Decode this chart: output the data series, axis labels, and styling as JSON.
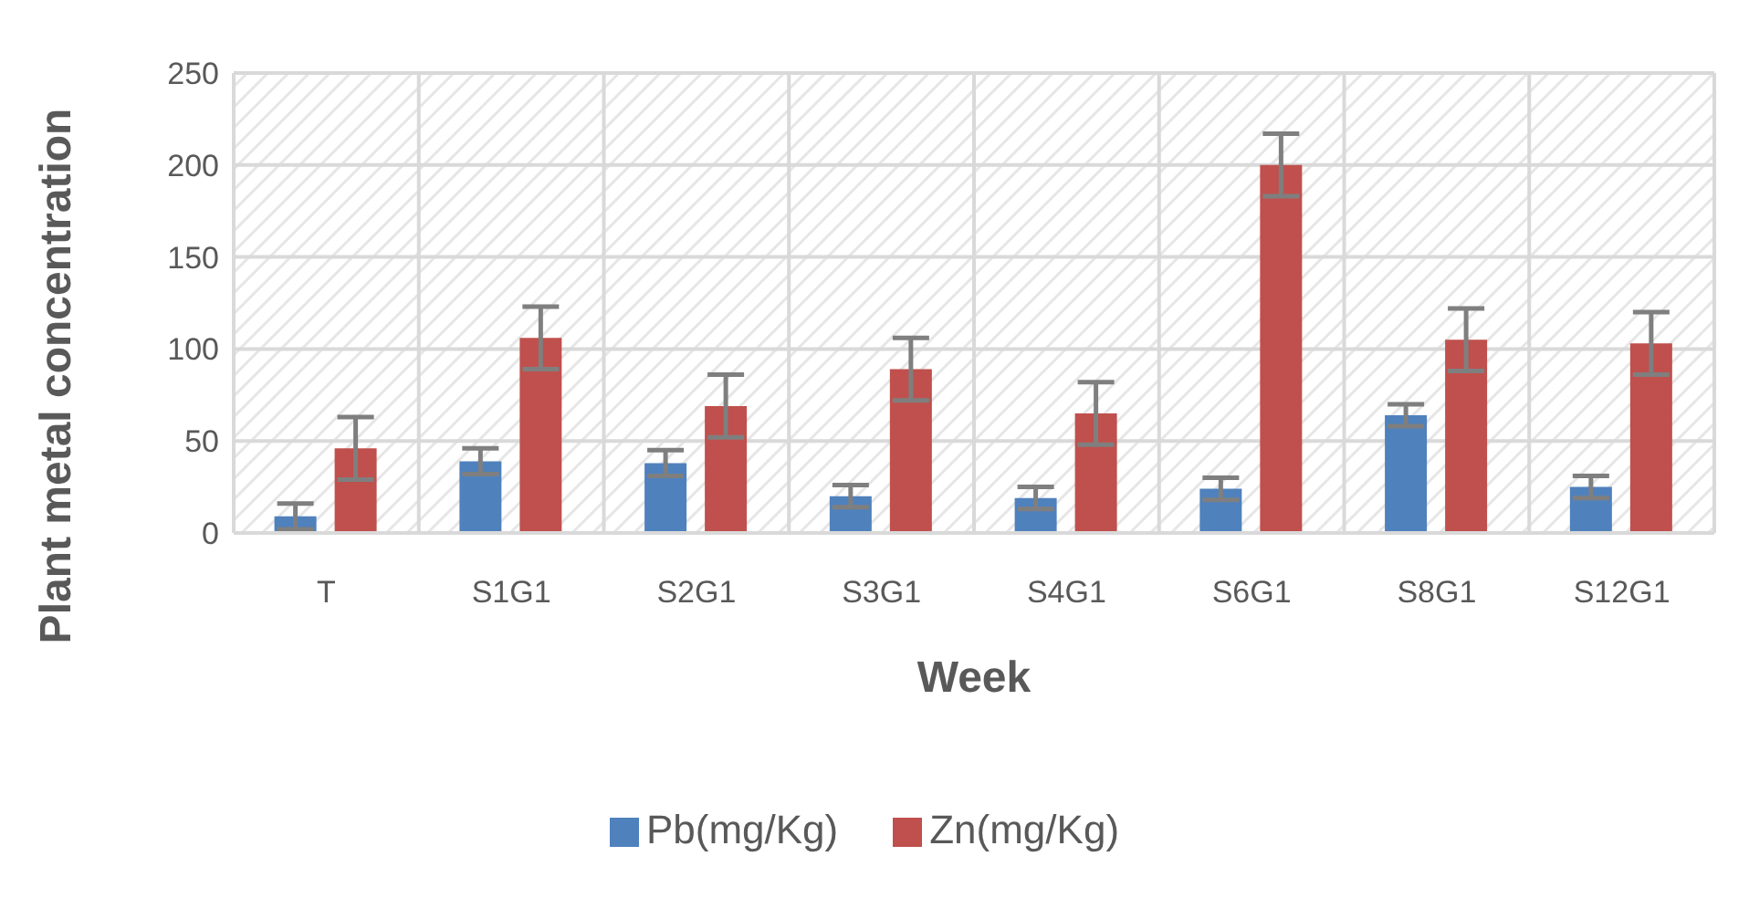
{
  "chart_data": {
    "type": "bar",
    "xlabel": "Week",
    "ylabel": "Plant metal concentration",
    "categories": [
      "T",
      "S1G1",
      "S2G1",
      "S3G1",
      "S4G1",
      "S6G1",
      "S8G1",
      "S12G1"
    ],
    "series": [
      {
        "name": "Pb(mg/Kg)",
        "color": "#4f81bd",
        "values": [
          9,
          39,
          38,
          20,
          19,
          24,
          64,
          25
        ],
        "errors": [
          7,
          7,
          7,
          6,
          6,
          6,
          6,
          6
        ]
      },
      {
        "name": "Zn(mg/Kg)",
        "color": "#c0504d",
        "values": [
          46,
          106,
          69,
          89,
          65,
          200,
          105,
          103
        ],
        "errors": [
          17,
          17,
          17,
          17,
          17,
          17,
          17,
          17
        ]
      }
    ],
    "ylim": [
      0,
      250
    ],
    "yticks": [
      0,
      50,
      100,
      150,
      200,
      250
    ],
    "grid": true,
    "legend": "bottom"
  }
}
